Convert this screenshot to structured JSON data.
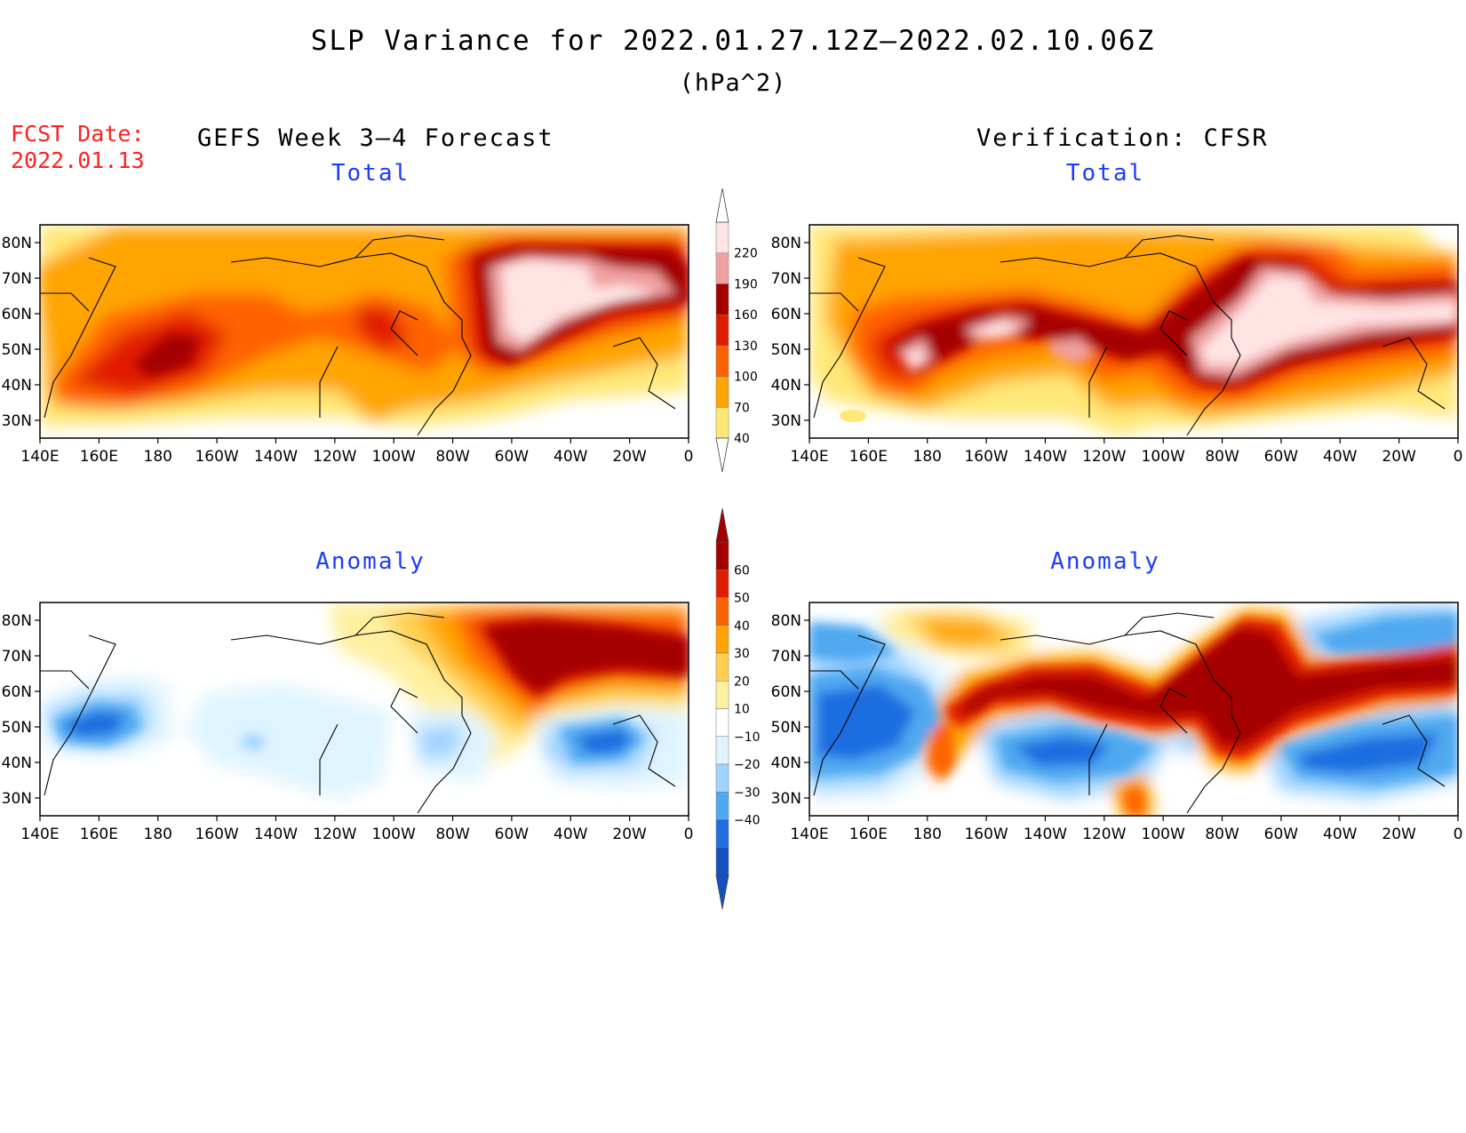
{
  "title": "SLP Variance for 2022.01.27.12Z–2022.02.10.06Z",
  "units": "(hPa^2)",
  "forecast_date": {
    "label": "FCST Date:",
    "value": "2022.01.13"
  },
  "columns": {
    "left": "GEFS Week 3–4 Forecast",
    "right": "Verification: CFSR"
  },
  "panels": [
    {
      "id": "fcst-total",
      "subtitle": "Total",
      "scale": "total"
    },
    {
      "id": "verif-total",
      "subtitle": "Total",
      "scale": "total"
    },
    {
      "id": "fcst-anomaly",
      "subtitle": "Anomaly",
      "scale": "anomaly"
    },
    {
      "id": "verif-anomaly",
      "subtitle": "Anomaly",
      "scale": "anomaly"
    }
  ],
  "axes": {
    "x_ticks": [
      "140E",
      "160E",
      "180",
      "160W",
      "140W",
      "120W",
      "100W",
      "80W",
      "60W",
      "40W",
      "20W",
      "0"
    ],
    "y_ticks": [
      "80N",
      "70N",
      "60N",
      "50N",
      "40N",
      "30N"
    ],
    "lon_range": [
      140,
      360
    ],
    "lat_range": [
      25,
      85
    ]
  },
  "colorbars": {
    "total": {
      "levels": [
        "40",
        "70",
        "100",
        "130",
        "160",
        "190",
        "220"
      ],
      "colors": [
        "#ffe878",
        "#ffa400",
        "#ff6200",
        "#e01c00",
        "#a50000",
        "#f0a0a0",
        "#ffe4e4"
      ]
    },
    "anomaly": {
      "levels": [
        "60",
        "50",
        "40",
        "30",
        "20",
        "10",
        "−10",
        "−20",
        "−30",
        "−40"
      ],
      "colors": [
        "#a50000",
        "#e01c00",
        "#ff6200",
        "#ffa400",
        "#ffd050",
        "#fff0a0",
        "#ffffff",
        "#e0f4ff",
        "#a0d4ff",
        "#50a8f0",
        "#1e6ee0",
        "#1450c0"
      ]
    }
  },
  "chart_data": {
    "type": "heatmap",
    "variable": "SLP variance",
    "period": "2022.01.27.12Z–2022.02.10.06Z",
    "units": "hPa^2",
    "fields": [
      {
        "panel": "GEFS Week 3–4 Forecast – Total",
        "maxima": [
          {
            "lon": 180,
            "lat": 47,
            "value": 160
          },
          {
            "lon": 247,
            "lat": 53,
            "value": 135
          },
          {
            "lon": 305,
            "lat": 65,
            "value": 220
          }
        ]
      },
      {
        "panel": "Verification: CFSR – Total",
        "maxima": [
          {
            "lon": 190,
            "lat": 47,
            "value": 200
          },
          {
            "lon": 225,
            "lat": 60,
            "value": 200
          },
          {
            "lon": 258,
            "lat": 50,
            "value": 200
          },
          {
            "lon": 300,
            "lat": 55,
            "value": 220
          }
        ]
      },
      {
        "panel": "GEFS Week 3–4 Forecast – Anomaly",
        "maxima": [
          {
            "lon": 305,
            "lat": 65,
            "value": 60
          }
        ],
        "minima": [
          {
            "lon": 150,
            "lat": 48,
            "value": -40
          },
          {
            "lon": 330,
            "lat": 48,
            "value": -35
          }
        ]
      },
      {
        "panel": "Verification: CFSR – Anomaly",
        "maxima": [
          {
            "lon": 230,
            "lat": 58,
            "value": 60
          },
          {
            "lon": 305,
            "lat": 60,
            "value": 60
          }
        ],
        "minima": [
          {
            "lon": 160,
            "lat": 45,
            "value": -40
          },
          {
            "lon": 225,
            "lat": 40,
            "value": -40
          },
          {
            "lon": 330,
            "lat": 42,
            "value": -40
          }
        ]
      }
    ]
  }
}
